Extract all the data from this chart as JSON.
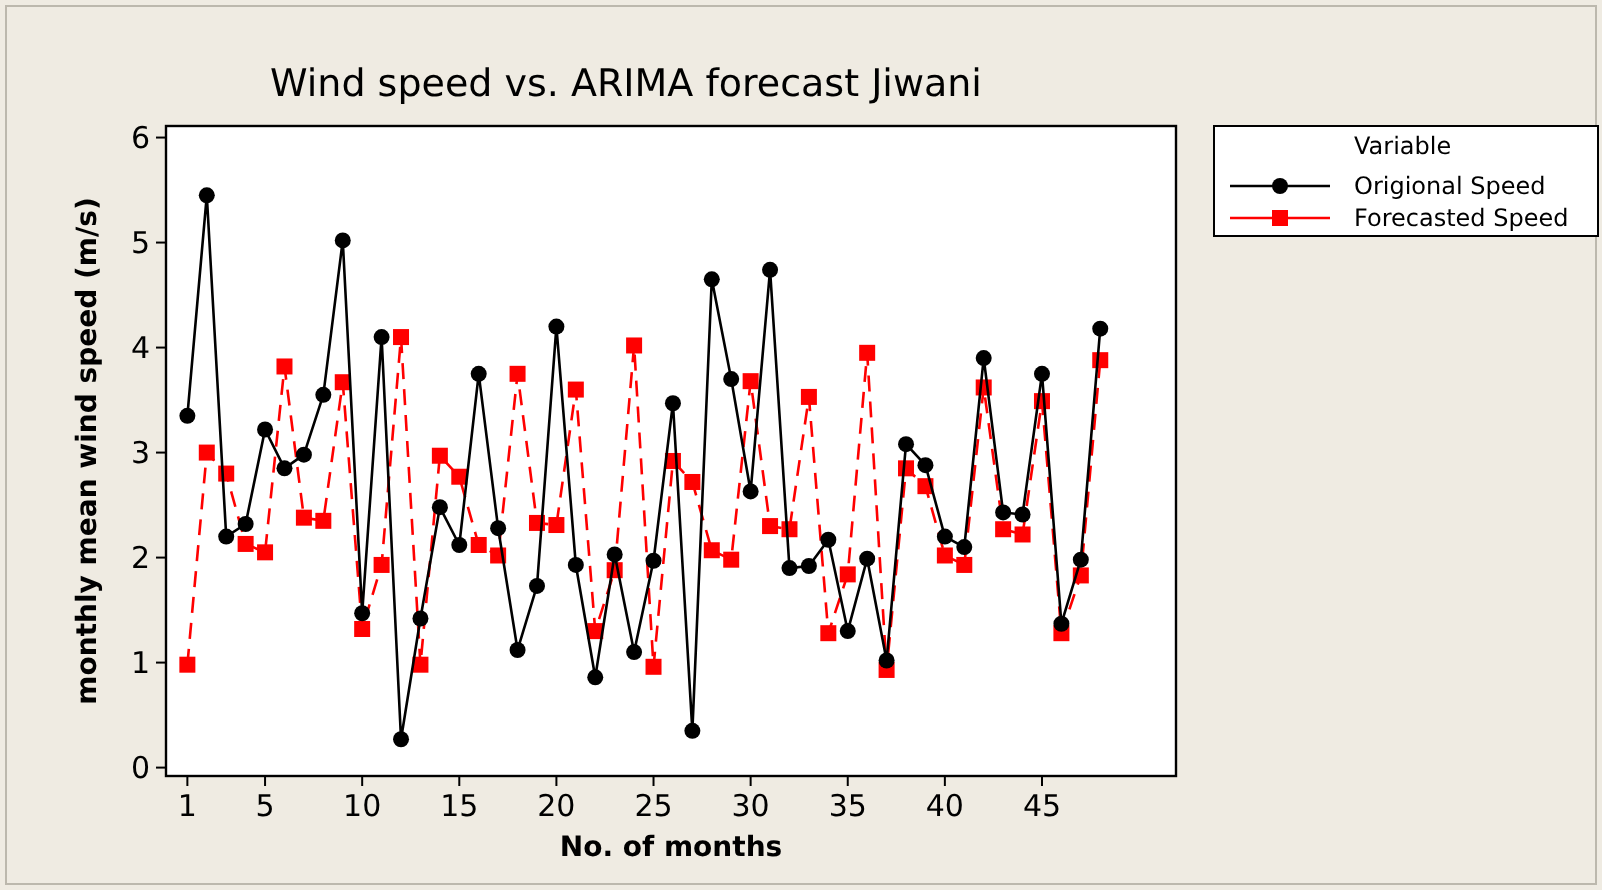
{
  "chart_data": {
    "type": "line",
    "title": "Wind speed vs. ARIMA forecast Jiwani",
    "xlabel": "No. of months",
    "ylabel": "monthly mean wind speed (m/s)",
    "legend_title": "Variable",
    "legend": "right",
    "grid": false,
    "x": [
      1,
      2,
      3,
      4,
      5,
      6,
      7,
      8,
      9,
      10,
      11,
      12,
      13,
      14,
      15,
      16,
      17,
      18,
      19,
      20,
      21,
      22,
      23,
      24,
      25,
      26,
      27,
      28,
      29,
      30,
      31,
      32,
      33,
      34,
      35,
      36,
      37,
      38,
      39,
      40,
      41,
      42,
      43,
      44,
      45,
      46,
      47,
      48
    ],
    "xlim": [
      -0.1,
      51.9
    ],
    "xticks": [
      1,
      5,
      10,
      15,
      20,
      25,
      30,
      35,
      40,
      45
    ],
    "ylim": [
      -0.08,
      6.11
    ],
    "yticks": [
      0,
      1,
      2,
      3,
      4,
      5,
      6
    ],
    "series": [
      {
        "name": "Origional Speed",
        "color": "#000000",
        "marker": "circle",
        "line_style": "solid",
        "values": [
          3.35,
          5.45,
          2.2,
          2.32,
          3.22,
          2.85,
          2.98,
          3.55,
          5.02,
          1.47,
          4.1,
          0.27,
          1.42,
          2.48,
          2.12,
          3.75,
          2.28,
          1.12,
          1.73,
          4.2,
          1.93,
          0.86,
          2.03,
          1.1,
          1.97,
          3.47,
          0.35,
          4.65,
          3.7,
          2.63,
          4.74,
          1.9,
          1.92,
          2.17,
          1.3,
          1.99,
          1.02,
          3.08,
          2.88,
          2.2,
          2.1,
          3.9,
          2.43,
          2.41,
          3.75,
          1.37,
          1.98,
          4.18
        ]
      },
      {
        "name": "Forecasted Speed",
        "color": "#ff0000",
        "marker": "square",
        "line_style": "dashed",
        "values": [
          0.98,
          3.0,
          2.8,
          2.13,
          2.05,
          3.82,
          2.38,
          2.35,
          3.67,
          1.32,
          1.93,
          4.1,
          0.98,
          2.97,
          2.77,
          2.12,
          2.02,
          3.75,
          2.33,
          2.31,
          3.6,
          1.3,
          1.88,
          4.02,
          0.96,
          2.92,
          2.72,
          2.07,
          1.98,
          3.68,
          2.3,
          2.27,
          3.53,
          1.28,
          1.84,
          3.95,
          0.93,
          2.85,
          2.68,
          2.02,
          1.93,
          3.62,
          2.27,
          2.22,
          3.49,
          1.28,
          1.83,
          3.88
        ]
      }
    ]
  }
}
